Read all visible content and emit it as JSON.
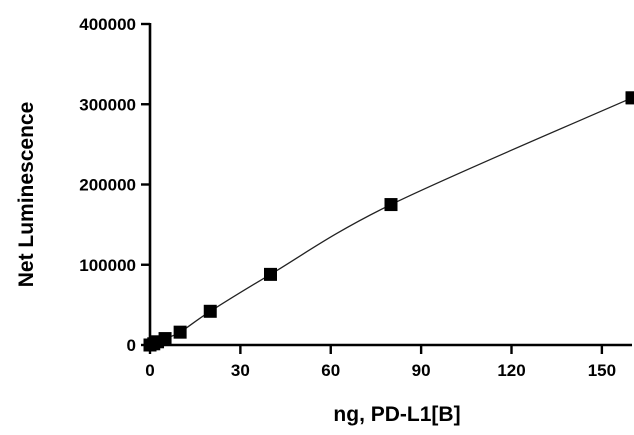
{
  "chart_data": {
    "type": "scatter",
    "xlabel": "ng, PD-L1[B]",
    "ylabel": "Net Luminescence",
    "xlim": [
      0,
      160
    ],
    "ylim": [
      0,
      400000
    ],
    "x_ticks": [
      0,
      30,
      60,
      90,
      120,
      150
    ],
    "y_ticks": [
      0,
      100000,
      200000,
      300000,
      400000
    ],
    "x_tick_labels": [
      "0",
      "30",
      "60",
      "90",
      "120",
      "150"
    ],
    "y_tick_labels": [
      "0",
      "100000",
      "200000",
      "300000",
      "400000"
    ],
    "grid": false,
    "legend": "none",
    "series": [
      {
        "marker": "square",
        "color": "#000000",
        "x": [
          0,
          1.25,
          2.5,
          5,
          10,
          20,
          40,
          80,
          160
        ],
        "y": [
          0,
          1500,
          4000,
          8000,
          16000,
          42000,
          88000,
          175000,
          308000
        ],
        "error": [
          0,
          0,
          0,
          0,
          0,
          0,
          0,
          0,
          7000
        ],
        "fit": "nonlinear curve through points"
      }
    ]
  }
}
